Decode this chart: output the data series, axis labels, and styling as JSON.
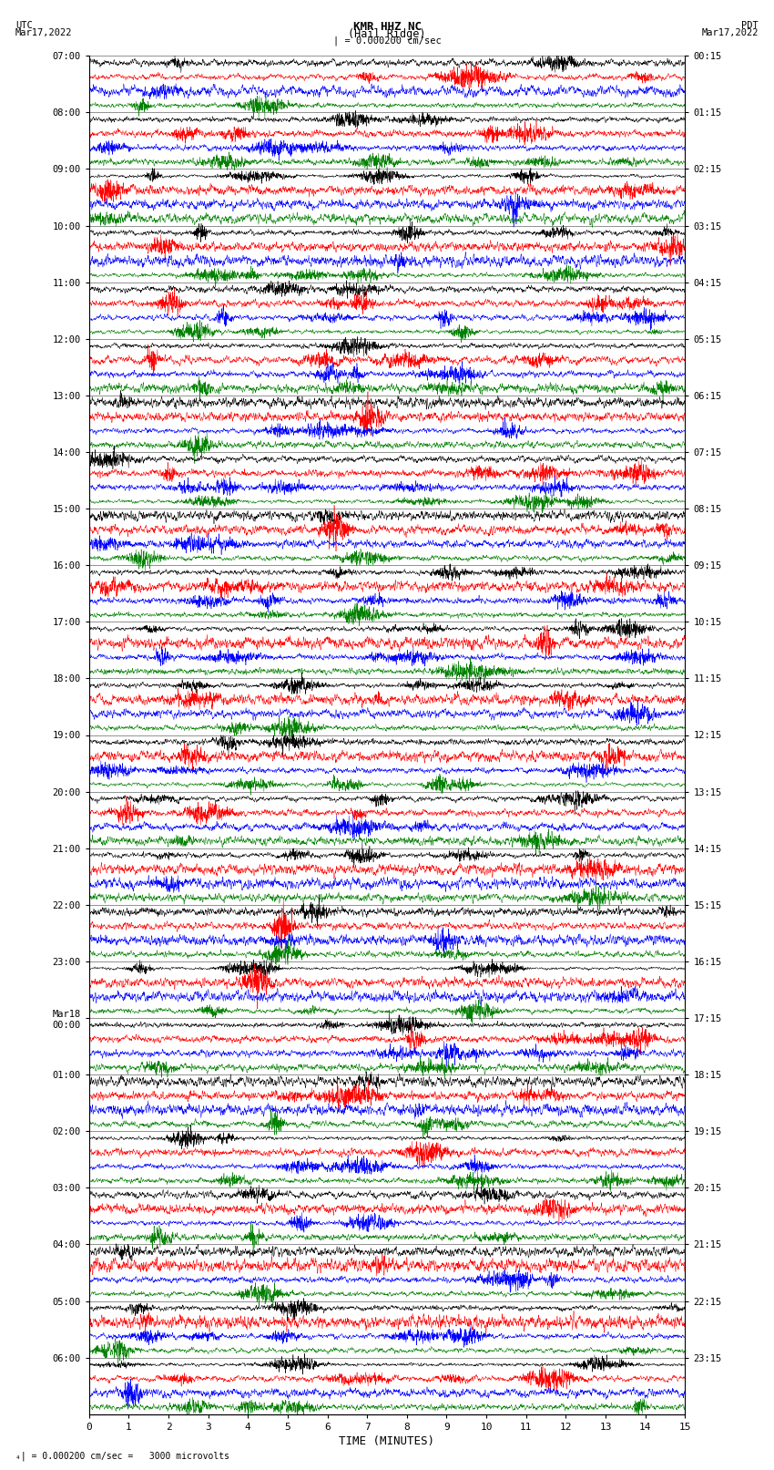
{
  "title_line1": "KMR HHZ NC",
  "title_line2": "(Hail Ridge)",
  "left_label": "UTC",
  "left_date": "Mar17,2022",
  "right_label": "PDT",
  "right_date": "Mar17,2022",
  "scale_text": "| = 0.000200 cm/sec",
  "bottom_note": "= 0.000200 cm/sec =   3000 microvolts",
  "xlabel": "TIME (MINUTES)",
  "xmin": 0,
  "xmax": 15,
  "left_times": [
    "07:00",
    "08:00",
    "09:00",
    "10:00",
    "11:00",
    "12:00",
    "13:00",
    "14:00",
    "15:00",
    "16:00",
    "17:00",
    "18:00",
    "19:00",
    "20:00",
    "21:00",
    "22:00",
    "23:00",
    "Mar18\n00:00",
    "01:00",
    "02:00",
    "03:00",
    "04:00",
    "05:00",
    "06:00"
  ],
  "right_times": [
    "00:15",
    "01:15",
    "02:15",
    "03:15",
    "04:15",
    "05:15",
    "06:15",
    "07:15",
    "08:15",
    "09:15",
    "10:15",
    "11:15",
    "12:15",
    "13:15",
    "14:15",
    "15:15",
    "16:15",
    "17:15",
    "18:15",
    "19:15",
    "20:15",
    "21:15",
    "22:15",
    "23:15"
  ],
  "n_rows": 24,
  "traces_per_row": 4,
  "colors": [
    "black",
    "red",
    "blue",
    "green"
  ],
  "background_color": "white",
  "fig_width": 8.5,
  "fig_height": 16.13
}
